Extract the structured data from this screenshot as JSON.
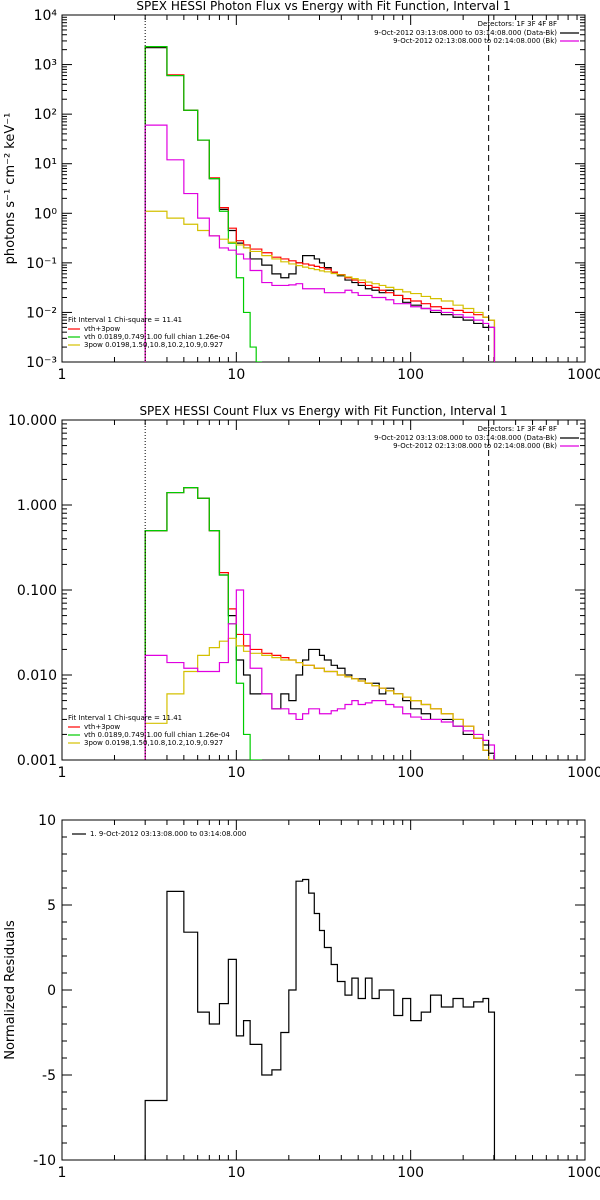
{
  "chart_data": [
    {
      "type": "line",
      "title": "SPEX HESSI Photon Flux vs Energy with Fit Function, Interval 1",
      "ylabel": "photons s⁻¹ cm⁻² keV⁻¹",
      "xlabel": "",
      "xscale": "log",
      "yscale": "log",
      "xlim": [
        1,
        1000
      ],
      "ylim": [
        0.001,
        10000
      ],
      "x_ticks": [
        "1",
        "10",
        "100",
        "1000"
      ],
      "y_ticks": [
        "10⁻³",
        "10⁻²",
        "10⁻¹",
        "10⁰",
        "10¹",
        "10²",
        "10³",
        "10⁴"
      ],
      "vlines": [
        {
          "x": 3,
          "style": "dotted"
        },
        {
          "x": 280,
          "style": "dashed"
        }
      ],
      "legend_top": {
        "header": "Detectors: 1F 3F 4F 8F",
        "entries": [
          {
            "label": "9-Oct-2012 03:13:08.000 to 03:14:08.000 (Data-Bk)",
            "color": "#000000"
          },
          {
            "label": "9-Oct-2012 02:13:08.000 to 02:14:08.000 (Bk)",
            "color": "#e000e0"
          }
        ]
      },
      "legend_bottom": {
        "header": "Fit Interval 1    Chi-square = 11.41",
        "entries": [
          {
            "label": "vth+3pow",
            "color": "#ff0000"
          },
          {
            "label": "vth 0.0189,0.749,1.00  full chian 1.26e-04",
            "color": "#00cc00"
          },
          {
            "label": "3pow 0.0198,1.50,10.8,10.2,10.9,0.927",
            "color": "#d4c000"
          }
        ]
      },
      "series": [
        {
          "color": "#000000",
          "x": [
            3,
            4,
            5,
            6,
            7,
            8,
            9,
            10,
            11,
            12,
            14,
            16,
            18,
            20,
            22,
            24,
            26,
            28,
            30,
            32,
            35,
            38,
            42,
            46,
            50,
            55,
            60,
            66,
            72,
            80,
            90,
            100,
            115,
            130,
            150,
            175,
            200,
            230,
            260,
            280
          ],
          "y": [
            2200,
            600,
            120,
            30,
            5,
            1.2,
            0.45,
            0.25,
            0.2,
            0.12,
            0.09,
            0.06,
            0.05,
            0.06,
            0.1,
            0.14,
            0.14,
            0.12,
            0.1,
            0.08,
            0.065,
            0.055,
            0.045,
            0.04,
            0.035,
            0.03,
            0.028,
            0.025,
            0.028,
            0.022,
            0.016,
            0.014,
            0.012,
            0.01,
            0.009,
            0.008,
            0.007,
            0.006,
            0.005,
            0.005
          ]
        },
        {
          "color": "#ff0000",
          "x": [
            3,
            4,
            5,
            6,
            7,
            8,
            9,
            10,
            11,
            12,
            14,
            16,
            18,
            20,
            22,
            24,
            26,
            28,
            30,
            32,
            35,
            38,
            42,
            46,
            50,
            55,
            60,
            66,
            72,
            80,
            90,
            100,
            115,
            130,
            150,
            175,
            200,
            230,
            260,
            280
          ],
          "y": [
            2300,
            620,
            120,
            30,
            5.2,
            1.3,
            0.5,
            0.28,
            0.23,
            0.19,
            0.16,
            0.13,
            0.12,
            0.11,
            0.1,
            0.095,
            0.09,
            0.085,
            0.08,
            0.075,
            0.065,
            0.058,
            0.05,
            0.045,
            0.04,
            0.035,
            0.032,
            0.028,
            0.025,
            0.022,
            0.019,
            0.017,
            0.015,
            0.013,
            0.012,
            0.011,
            0.01,
            0.009,
            0.008,
            0.007
          ]
        },
        {
          "color": "#00cc00",
          "x": [
            3,
            4,
            5,
            6,
            7,
            8,
            9,
            10,
            11,
            12,
            13
          ],
          "y": [
            2300,
            600,
            120,
            30,
            5,
            1.1,
            0.25,
            0.05,
            0.01,
            0.002,
            0.001
          ]
        },
        {
          "color": "#d4c000",
          "x": [
            3,
            4,
            5,
            6,
            7,
            8,
            9,
            10,
            11,
            12,
            14,
            16,
            18,
            20,
            22,
            24,
            26,
            28,
            30,
            32,
            35,
            38,
            42,
            46,
            50,
            55,
            60,
            66,
            72,
            80,
            90,
            100,
            115,
            130,
            150,
            175,
            200,
            230,
            260,
            280
          ],
          "y": [
            1.1,
            0.8,
            0.6,
            0.45,
            0.35,
            0.3,
            0.26,
            0.23,
            0.2,
            0.17,
            0.14,
            0.12,
            0.105,
            0.095,
            0.088,
            0.082,
            0.077,
            0.073,
            0.069,
            0.066,
            0.061,
            0.057,
            0.052,
            0.048,
            0.045,
            0.041,
            0.038,
            0.035,
            0.032,
            0.029,
            0.026,
            0.024,
            0.021,
            0.019,
            0.017,
            0.014,
            0.012,
            0.01,
            0.008,
            0.007
          ]
        },
        {
          "color": "#e000e0",
          "x": [
            3,
            4,
            5,
            6,
            7,
            8,
            9,
            10,
            11,
            12,
            14,
            16,
            18,
            20,
            22,
            24,
            26,
            28,
            30,
            32,
            35,
            38,
            42,
            46,
            50,
            55,
            60,
            66,
            72,
            80,
            90,
            100,
            115,
            130,
            150,
            175,
            200,
            230,
            260,
            280
          ],
          "y": [
            60,
            12,
            2.5,
            0.8,
            0.35,
            0.2,
            0.18,
            0.15,
            0.12,
            0.07,
            0.04,
            0.035,
            0.035,
            0.036,
            0.038,
            0.03,
            0.03,
            0.03,
            0.03,
            0.025,
            0.025,
            0.025,
            0.028,
            0.025,
            0.022,
            0.022,
            0.02,
            0.02,
            0.018,
            0.015,
            0.015,
            0.013,
            0.012,
            0.011,
            0.01,
            0.009,
            0.008,
            0.007,
            0.006,
            0.005
          ]
        }
      ]
    },
    {
      "type": "line",
      "title": "SPEX HESSI Count Flux vs Energy with Fit Function, Interval 1",
      "ylabel": "",
      "xlabel": "",
      "xscale": "log",
      "yscale": "log",
      "xlim": [
        1,
        1000
      ],
      "ylim": [
        0.001,
        10
      ],
      "x_ticks": [
        "1",
        "10",
        "100",
        "1000"
      ],
      "y_ticks": [
        "0.001",
        "0.010",
        "0.100",
        "1.000",
        "10.000"
      ],
      "vlines": [
        {
          "x": 3,
          "style": "dotted"
        },
        {
          "x": 280,
          "style": "dashed"
        }
      ],
      "legend_top": {
        "header": "Detectors: 1F 3F 4F 8F",
        "entries": [
          {
            "label": "9-Oct-2012 03:13:08.000 to 03:14:08.000 (Data-Bk)",
            "color": "#000000"
          },
          {
            "label": "9-Oct-2012 02:13:08.000 to 02:14:08.000 (Bk)",
            "color": "#e000e0"
          }
        ]
      },
      "legend_bottom": {
        "header": "Fit Interval 1    Chi-square = 11.41",
        "entries": [
          {
            "label": "vth+3pow",
            "color": "#ff0000"
          },
          {
            "label": "vth 0.0189,0.749,1.00  full chian 1.26e-04",
            "color": "#00cc00"
          },
          {
            "label": "3pow 0.0198,1.50,10.8,10.2,10.9,0.927",
            "color": "#d4c000"
          }
        ]
      },
      "series": [
        {
          "color": "#000000",
          "x": [
            3,
            4,
            5,
            6,
            7,
            8,
            9,
            10,
            11,
            12,
            14,
            16,
            18,
            20,
            22,
            24,
            26,
            28,
            30,
            32,
            35,
            38,
            42,
            46,
            50,
            55,
            60,
            66,
            72,
            80,
            90,
            100,
            115,
            130,
            150,
            175,
            200,
            230,
            260,
            280
          ],
          "y": [
            0.5,
            1.4,
            1.6,
            1.2,
            0.5,
            0.15,
            0.05,
            0.015,
            0.01,
            0.006,
            0.006,
            0.004,
            0.006,
            0.005,
            0.01,
            0.015,
            0.02,
            0.02,
            0.017,
            0.015,
            0.013,
            0.012,
            0.01,
            0.009,
            0.009,
            0.008,
            0.008,
            0.006,
            0.007,
            0.006,
            0.005,
            0.004,
            0.0035,
            0.003,
            0.003,
            0.0025,
            0.002,
            0.0018,
            0.0015,
            0.0012
          ]
        },
        {
          "color": "#ff0000",
          "x": [
            3,
            4,
            5,
            6,
            7,
            8,
            9,
            10,
            11,
            12,
            14,
            16,
            18,
            20,
            22,
            24,
            26,
            28,
            30,
            32,
            35,
            38,
            42,
            46,
            50,
            55,
            60,
            66,
            72,
            80,
            90,
            100,
            115,
            130,
            150,
            175,
            200,
            230,
            260,
            280
          ],
          "y": [
            0.5,
            1.4,
            1.6,
            1.2,
            0.5,
            0.16,
            0.06,
            0.03,
            0.022,
            0.02,
            0.018,
            0.017,
            0.016,
            0.015,
            0.014,
            0.013,
            0.013,
            0.012,
            0.012,
            0.011,
            0.011,
            0.01,
            0.0095,
            0.009,
            0.0085,
            0.008,
            0.0075,
            0.007,
            0.0065,
            0.006,
            0.0055,
            0.005,
            0.0045,
            0.004,
            0.0035,
            0.003,
            0.0025,
            0.0018,
            0.0013,
            0.001
          ]
        },
        {
          "color": "#00cc00",
          "x": [
            3,
            4,
            5,
            6,
            7,
            8,
            9,
            10,
            11,
            12,
            13
          ],
          "y": [
            0.5,
            1.4,
            1.6,
            1.2,
            0.5,
            0.15,
            0.04,
            0.008,
            0.002,
            0.001,
            0.001
          ]
        },
        {
          "color": "#d4c000",
          "x": [
            3,
            4,
            5,
            6,
            7,
            8,
            9,
            10,
            11,
            12,
            14,
            16,
            18,
            20,
            22,
            24,
            26,
            28,
            30,
            32,
            35,
            38,
            42,
            46,
            50,
            55,
            60,
            66,
            72,
            80,
            90,
            100,
            115,
            130,
            150,
            175,
            200,
            230,
            260,
            280
          ],
          "y": [
            0.0027,
            0.006,
            0.011,
            0.017,
            0.021,
            0.025,
            0.027,
            0.022,
            0.019,
            0.018,
            0.017,
            0.016,
            0.015,
            0.015,
            0.014,
            0.013,
            0.013,
            0.012,
            0.012,
            0.011,
            0.011,
            0.01,
            0.0095,
            0.009,
            0.0085,
            0.008,
            0.0075,
            0.007,
            0.0065,
            0.006,
            0.0055,
            0.005,
            0.0045,
            0.004,
            0.0035,
            0.003,
            0.0025,
            0.0018,
            0.0013,
            0.001
          ]
        },
        {
          "color": "#e000e0",
          "x": [
            3,
            4,
            5,
            6,
            7,
            8,
            9,
            10,
            11,
            12,
            14,
            16,
            18,
            20,
            22,
            24,
            26,
            28,
            30,
            32,
            35,
            38,
            42,
            46,
            50,
            55,
            60,
            66,
            72,
            80,
            90,
            100,
            115,
            130,
            150,
            175,
            200,
            230,
            260,
            280
          ],
          "y": [
            0.017,
            0.014,
            0.012,
            0.011,
            0.011,
            0.014,
            0.04,
            0.1,
            0.03,
            0.012,
            0.006,
            0.004,
            0.004,
            0.0035,
            0.003,
            0.0035,
            0.004,
            0.004,
            0.0035,
            0.0035,
            0.0038,
            0.004,
            0.0045,
            0.005,
            0.0045,
            0.0047,
            0.005,
            0.005,
            0.0045,
            0.0042,
            0.0035,
            0.0032,
            0.003,
            0.003,
            0.0028,
            0.0025,
            0.0022,
            0.002,
            0.0017,
            0.0015
          ]
        }
      ]
    },
    {
      "type": "line",
      "title": "",
      "ylabel": "Normalized Residuals",
      "xlabel": "",
      "xscale": "log",
      "yscale": "linear",
      "xlim": [
        1,
        1000
      ],
      "ylim": [
        -10,
        10
      ],
      "x_ticks": [
        "1",
        "10",
        "100",
        "1000"
      ],
      "y_ticks": [
        "-10",
        "-5",
        "0",
        "5",
        "10"
      ],
      "legend": "1.  9-Oct-2012 03:13:08.000 to 03:14:08.000",
      "series": [
        {
          "color": "#000000",
          "x": [
            3,
            4,
            5,
            6,
            7,
            8,
            9,
            10,
            11,
            12,
            14,
            16,
            18,
            20,
            22,
            24,
            26,
            28,
            30,
            32,
            35,
            38,
            42,
            46,
            50,
            55,
            60,
            66,
            72,
            80,
            90,
            100,
            115,
            130,
            150,
            175,
            200,
            230,
            260,
            280
          ],
          "y": [
            -6.5,
            5.8,
            3.4,
            -1.3,
            -2,
            -0.8,
            1.8,
            -2.7,
            -1.8,
            -3.2,
            -5,
            -4.7,
            -2.5,
            0,
            6.4,
            6.5,
            5.7,
            4.5,
            3.5,
            2.5,
            1.5,
            0.5,
            -0.3,
            0.7,
            -0.5,
            0.7,
            -0.5,
            0,
            0,
            -1.5,
            -0.5,
            -1.8,
            -1.3,
            -0.3,
            -1,
            -0.5,
            -1,
            -0.7,
            -0.5,
            -1.3
          ]
        }
      ]
    }
  ]
}
